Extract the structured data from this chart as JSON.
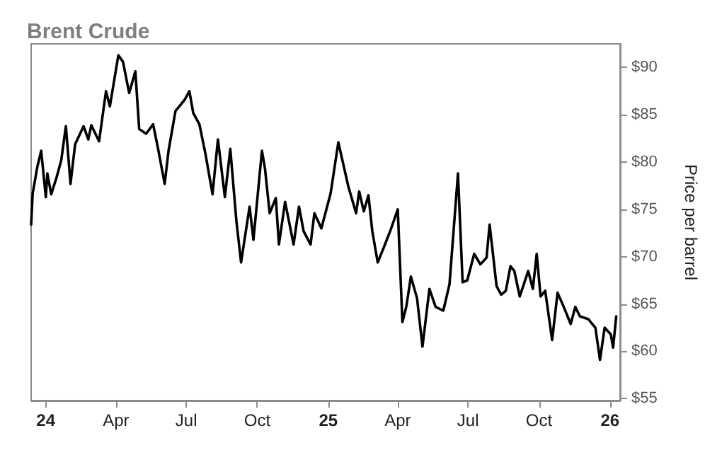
{
  "chart_data": {
    "type": "line",
    "title": "Brent Crude",
    "ylabel": "Price per barrel",
    "x": [
      "2023-12-13",
      "2023-12-15",
      "2023-12-21",
      "2023-12-26",
      "2024-01-01",
      "2024-01-03",
      "2024-01-08",
      "2024-01-15",
      "2024-01-21",
      "2024-01-27",
      "2024-02-02",
      "2024-02-08",
      "2024-02-19",
      "2024-02-25",
      "2024-02-29",
      "2024-03-10",
      "2024-03-19",
      "2024-03-24",
      "2024-04-04",
      "2024-04-10",
      "2024-04-18",
      "2024-04-26",
      "2024-05-01",
      "2024-05-10",
      "2024-05-19",
      "2024-05-25",
      "2024-06-03",
      "2024-06-08",
      "2024-06-17",
      "2024-06-29",
      "2024-07-05",
      "2024-07-10",
      "2024-07-18",
      "2024-07-26",
      "2024-08-04",
      "2024-08-11",
      "2024-08-20",
      "2024-08-27",
      "2024-09-04",
      "2024-09-10",
      "2024-09-21",
      "2024-09-26",
      "2024-10-07",
      "2024-10-11",
      "2024-10-17",
      "2024-10-25",
      "2024-10-29",
      "2024-11-06",
      "2024-11-17",
      "2024-11-24",
      "2024-11-30",
      "2024-12-09",
      "2024-12-14",
      "2024-12-23",
      "2025-01-04",
      "2025-01-14",
      "2025-01-27",
      "2025-02-06",
      "2025-02-10",
      "2025-02-16",
      "2025-02-22",
      "2025-02-27",
      "2025-03-06",
      "2025-03-14",
      "2025-03-23",
      "2025-04-01",
      "2025-04-07",
      "2025-04-12",
      "2025-04-18",
      "2025-04-26",
      "2025-05-03",
      "2025-05-12",
      "2025-05-20",
      "2025-05-30",
      "2025-06-07",
      "2025-06-18",
      "2025-06-24",
      "2025-06-30",
      "2025-07-09",
      "2025-07-17",
      "2025-07-25",
      "2025-07-29",
      "2025-08-07",
      "2025-08-13",
      "2025-08-19",
      "2025-08-25",
      "2025-08-30",
      "2025-09-06",
      "2025-09-17",
      "2025-09-23",
      "2025-09-28",
      "2025-10-03",
      "2025-10-09",
      "2025-10-18",
      "2025-10-25",
      "2025-11-02",
      "2025-11-11",
      "2025-11-17",
      "2025-11-23",
      "2025-12-04",
      "2025-12-13",
      "2025-12-19",
      "2025-12-25",
      "2026-01-02",
      "2026-01-05",
      "2026-01-09"
    ],
    "series": [
      {
        "color": "#000000",
        "values": [
          73.4,
          76.7,
          79.5,
          81.2,
          76.3,
          78.8,
          76.6,
          78.4,
          80.2,
          83.8,
          77.7,
          81.9,
          83.8,
          82.4,
          83.9,
          82.2,
          87.5,
          85.9,
          91.3,
          90.6,
          87.3,
          89.6,
          83.5,
          83.0,
          84.0,
          81.6,
          77.7,
          81.2,
          85.4,
          86.6,
          87.5,
          85.2,
          84.0,
          80.8,
          76.6,
          82.4,
          76.3,
          81.4,
          73.7,
          69.4,
          75.3,
          71.8,
          81.2,
          79.3,
          74.6,
          76.2,
          71.3,
          75.8,
          71.3,
          75.3,
          72.7,
          71.3,
          74.6,
          73.0,
          76.7,
          82.1,
          77.4,
          74.6,
          76.9,
          74.8,
          76.5,
          72.7,
          69.4,
          71.0,
          72.9,
          75.0,
          63.1,
          64.7,
          67.9,
          65.6,
          60.5,
          66.6,
          64.7,
          64.3,
          67.1,
          78.8,
          67.3,
          67.5,
          70.3,
          69.2,
          69.9,
          73.4,
          66.9,
          66.0,
          66.4,
          69.0,
          68.5,
          65.8,
          68.5,
          66.6,
          70.3,
          65.8,
          66.4,
          61.2,
          66.2,
          64.7,
          62.9,
          64.7,
          63.7,
          63.4,
          62.5,
          59.1,
          62.5,
          61.8,
          60.4,
          63.7
        ]
      }
    ],
    "xlim": [
      "2023-12-13",
      "2026-01-14"
    ],
    "xticks": [
      {
        "value": "2024-01-01",
        "label": "24"
      },
      {
        "value": "2024-04-01",
        "label": "Apr"
      },
      {
        "value": "2024-07-01",
        "label": "Jul"
      },
      {
        "value": "2024-10-01",
        "label": "Oct"
      },
      {
        "value": "2025-01-01",
        "label": "25"
      },
      {
        "value": "2025-04-01",
        "label": "Apr"
      },
      {
        "value": "2025-07-01",
        "label": "Jul"
      },
      {
        "value": "2025-10-01",
        "label": "Oct"
      },
      {
        "value": "2026-01-01",
        "label": "26"
      }
    ],
    "ylim": [
      54.8,
      92.5
    ],
    "yticks": [
      {
        "value": 55,
        "label": "$55"
      },
      {
        "value": 60,
        "label": "$60"
      },
      {
        "value": 65,
        "label": "$65"
      },
      {
        "value": 70,
        "label": "$70"
      },
      {
        "value": 75,
        "label": "$75"
      },
      {
        "value": 80,
        "label": "$80"
      },
      {
        "value": 85,
        "label": "$85"
      },
      {
        "value": 90,
        "label": "$90"
      }
    ],
    "grid": false,
    "marker": "none",
    "line_style": "solid"
  }
}
